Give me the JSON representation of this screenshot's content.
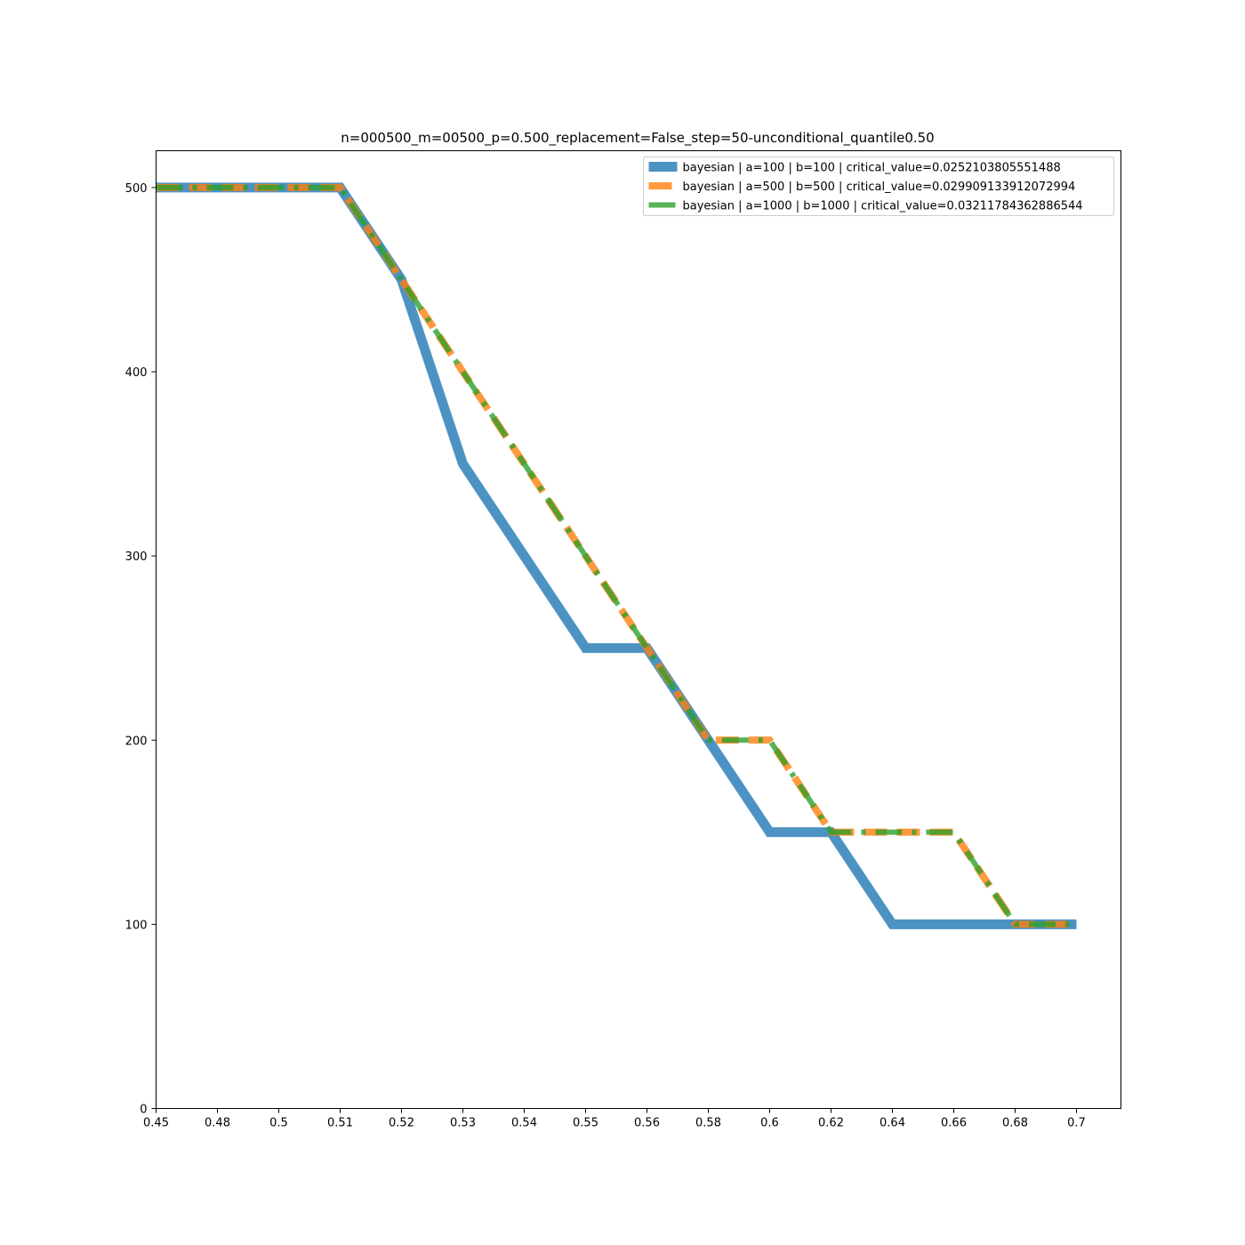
{
  "chart_data": {
    "type": "line",
    "title": "n=000500_m=00500_p=0.500_replacement=False_step=50-unconditional_quantile0.50",
    "xlabel": "",
    "ylabel": "",
    "x_tick_labels": [
      "0.45",
      "0.48",
      "0.5",
      "0.51",
      "0.52",
      "0.53",
      "0.54",
      "0.55",
      "0.56",
      "0.58",
      "0.6",
      "0.62",
      "0.64",
      "0.66",
      "0.68",
      "0.7"
    ],
    "y_ticks": [
      0,
      100,
      200,
      300,
      400,
      500
    ],
    "ylim": [
      0,
      520
    ],
    "grid": false,
    "legend_position": "top-right",
    "series": [
      {
        "name": "bayesian | a=100 | b=100 | critical_value=0.0252103805551488",
        "color": "#1f77b4",
        "style": "solid",
        "values": [
          500,
          500,
          500,
          500,
          450,
          350,
          300,
          250,
          250,
          200,
          150,
          150,
          100,
          100,
          100,
          100
        ]
      },
      {
        "name": "bayesian | a=500 | b=500 | critical_value=0.029909133912072994",
        "color": "#ff7f0e",
        "style": "dashed",
        "values": [
          500,
          500,
          500,
          500,
          450,
          400,
          350,
          300,
          250,
          200,
          200,
          150,
          150,
          150,
          100,
          100
        ]
      },
      {
        "name": "bayesian | a=1000 | b=1000 | critical_value=0.03211784362886544",
        "color": "#2ca02c",
        "style": "dashdot",
        "values": [
          500,
          500,
          500,
          500,
          450,
          400,
          350,
          300,
          250,
          200,
          200,
          150,
          150,
          150,
          100,
          100
        ]
      }
    ]
  }
}
